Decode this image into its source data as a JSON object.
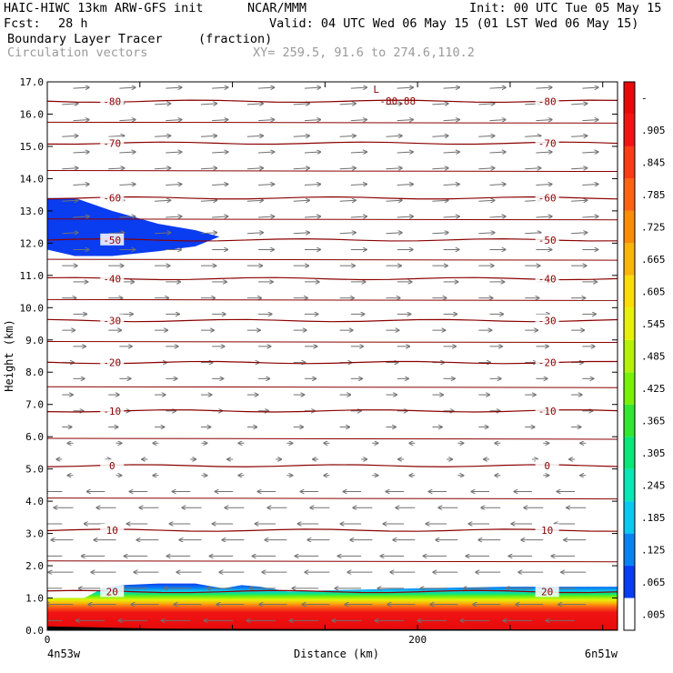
{
  "header": {
    "title": "HAIC-HIWC 13km ARW-GFS init",
    "org": "NCAR/MMM",
    "init": "Init: 00 UTC Tue 05 May 15",
    "fcst_label": "Fcst:",
    "fcst_value": "28 h",
    "valid": "Valid: 04 UTC Wed 06 May 15 (01 LST Wed 06 May 15)",
    "field_name": "Boundary Layer Tracer",
    "field_units": "(fraction)",
    "overlay_name": "Circulation vectors",
    "xy_info": "XY= 259.5, 91.6 to 274.6,110.2"
  },
  "chart_data": {
    "type": "heatmap",
    "xlabel": "Distance (km)",
    "ylabel": "Height (km)",
    "xlim": [
      0,
      308
    ],
    "ylim": [
      0,
      17
    ],
    "x_ticks": [
      {
        "v": 0,
        "label": "0"
      },
      {
        "v": 200,
        "label": "200"
      }
    ],
    "x_end_labels": {
      "left": "4n53w",
      "right": "6n51w"
    },
    "y_ticks": [
      "0.0",
      "1.0",
      "2.0",
      "3.0",
      "4.0",
      "5.0",
      "6.0",
      "7.0",
      "8.0",
      "9.0",
      "10.0",
      "11.0",
      "12.0",
      "13.0",
      "14.0",
      "15.0",
      "16.0",
      "17.0"
    ],
    "colorbar": {
      "labels": [
        ".005",
        ".065",
        ".125",
        ".185",
        ".245",
        ".305",
        ".365",
        ".425",
        ".485",
        ".545",
        ".605",
        ".665",
        ".725",
        ".785",
        ".845",
        ".905",
        "-"
      ],
      "colors": [
        "#ffffff",
        "#0a3cf0",
        "#0a82f0",
        "#0ac8f0",
        "#0ae6b4",
        "#0ae678",
        "#32e632",
        "#78f00a",
        "#b4f00a",
        "#e6f00a",
        "#fadc0a",
        "#fab40a",
        "#fa8c0a",
        "#fa6414",
        "#fa3c14",
        "#f01414",
        "#e60a0a"
      ]
    },
    "isotherms_degC": [
      {
        "t": "-80",
        "z": 16.4
      },
      {
        "t": "-70",
        "z": 15.1
      },
      {
        "t": "-60",
        "z": 13.4
      },
      {
        "t": "-50",
        "z": 12.1
      },
      {
        "t": "-40",
        "z": 10.9
      },
      {
        "t": "-30",
        "z": 9.6
      },
      {
        "t": "-20",
        "z": 8.3
      },
      {
        "t": "-10",
        "z": 6.8
      },
      {
        "t": "0",
        "z": 5.1
      },
      {
        "t": "10",
        "z": 3.1
      },
      {
        "t": "20",
        "z": 1.2
      }
    ],
    "min_marker": {
      "label": "L",
      "value": "-80.88",
      "x": 178,
      "z": 16.6
    },
    "tracer_regions": [
      {
        "name": "upper-layer tracer",
        "value_range": [
          0.005,
          0.065
        ],
        "outline": [
          [
            0,
            13.4
          ],
          [
            15,
            13.4
          ],
          [
            35,
            13.0
          ],
          [
            60,
            12.6
          ],
          [
            80,
            12.4
          ],
          [
            93,
            12.2
          ],
          [
            80,
            11.9
          ],
          [
            60,
            11.75
          ],
          [
            35,
            11.6
          ],
          [
            15,
            11.6
          ],
          [
            0,
            11.8
          ]
        ]
      },
      {
        "name": "boundary layer tracer",
        "value_range": [
          0.005,
          1.0
        ],
        "top_km": [
          [
            0,
            1.0
          ],
          [
            20,
            1.0
          ],
          [
            30,
            1.3
          ],
          [
            40,
            1.4
          ],
          [
            60,
            1.45
          ],
          [
            80,
            1.45
          ],
          [
            95,
            1.3
          ],
          [
            105,
            1.4
          ],
          [
            115,
            1.35
          ],
          [
            130,
            1.2
          ],
          [
            160,
            1.25
          ],
          [
            200,
            1.3
          ],
          [
            250,
            1.35
          ],
          [
            308,
            1.35
          ]
        ]
      }
    ]
  }
}
